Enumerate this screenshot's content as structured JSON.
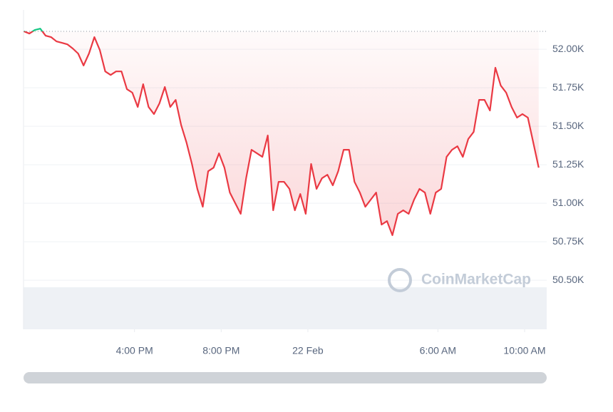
{
  "chart_data": {
    "type": "line",
    "watermark": "CoinMarketCap",
    "x": [
      10.9,
      11.15,
      11.4,
      11.65,
      11.9,
      12.15,
      12.4,
      12.65,
      12.9,
      13.15,
      13.4,
      13.65,
      13.9,
      14.15,
      14.4,
      14.65,
      14.9,
      15.15,
      15.4,
      15.65,
      15.9,
      16.15,
      16.4,
      16.65,
      16.9,
      17.15,
      17.4,
      17.65,
      17.9,
      18.15,
      18.4,
      18.65,
      18.9,
      19.15,
      19.4,
      19.65,
      19.9,
      20.15,
      20.4,
      20.65,
      20.9,
      21.15,
      21.4,
      21.65,
      21.9,
      22.15,
      22.4,
      22.65,
      22.9,
      23.15,
      23.4,
      23.65,
      23.9,
      24.15,
      24.4,
      24.65,
      24.9,
      25.15,
      25.4,
      25.65,
      25.9,
      26.15,
      26.4,
      26.65,
      26.9,
      27.15,
      27.4,
      27.65,
      27.9,
      28.15,
      28.4,
      28.65,
      28.9,
      29.15,
      29.4,
      29.65,
      29.9,
      30.15,
      30.4,
      30.65,
      30.9,
      31.15,
      31.4,
      31.65,
      31.9,
      32.15,
      32.4,
      32.65,
      32.9,
      33.15,
      33.4,
      33.65,
      33.9,
      34.15,
      34.4,
      34.65
    ],
    "series": [
      {
        "color": "#ea3943",
        "values": [
          52116,
          52102,
          52125,
          52134,
          52088,
          52079,
          52051,
          52042,
          52032,
          52005,
          51972,
          51894,
          51972,
          52079,
          51995,
          51856,
          51833,
          51856,
          51856,
          51741,
          51718,
          51625,
          51773,
          51625,
          51579,
          51648,
          51755,
          51625,
          51671,
          51509,
          51394,
          51255,
          51093,
          50977,
          51208,
          51231,
          51324,
          51231,
          51069,
          51000,
          50931,
          51162,
          51347,
          51324,
          51301,
          51440,
          50954,
          51139,
          51139,
          51093,
          50954,
          51060,
          50931,
          51255,
          51093,
          51162,
          51185,
          51116,
          51208,
          51347,
          51347,
          51139,
          51069,
          50977,
          51023,
          51069,
          50861,
          50884,
          50792,
          50931,
          50954,
          50931,
          51023,
          51093,
          51069,
          50931,
          51069,
          51093,
          51301,
          51347,
          51370,
          51301,
          51417,
          51463,
          51671,
          51671,
          51602,
          51880,
          51764,
          51718,
          51625,
          51556,
          51579,
          51556,
          51394,
          51231
        ]
      }
    ],
    "up_color": "#16c784",
    "baseline": 52116,
    "xlim": [
      10.88,
      35.02
    ],
    "xticks": [
      {
        "value": 16,
        "label": "4:00 PM"
      },
      {
        "value": 20,
        "label": "8:00 PM"
      },
      {
        "value": 24,
        "label": "22 Feb"
      },
      {
        "value": 30,
        "label": "6:00 AM"
      },
      {
        "value": 34,
        "label": "10:00 AM"
      }
    ],
    "ylim": [
      50181,
      52255
    ],
    "yticks": [
      {
        "value": 50500,
        "label": "50.50K"
      },
      {
        "value": 50750,
        "label": "50.75K"
      },
      {
        "value": 51000,
        "label": "51.00K"
      },
      {
        "value": 51250,
        "label": "51.25K"
      },
      {
        "value": 51500,
        "label": "51.50K"
      },
      {
        "value": 51750,
        "label": "51.75K"
      },
      {
        "value": 52000,
        "label": "52.00K"
      }
    ],
    "grid": true
  }
}
